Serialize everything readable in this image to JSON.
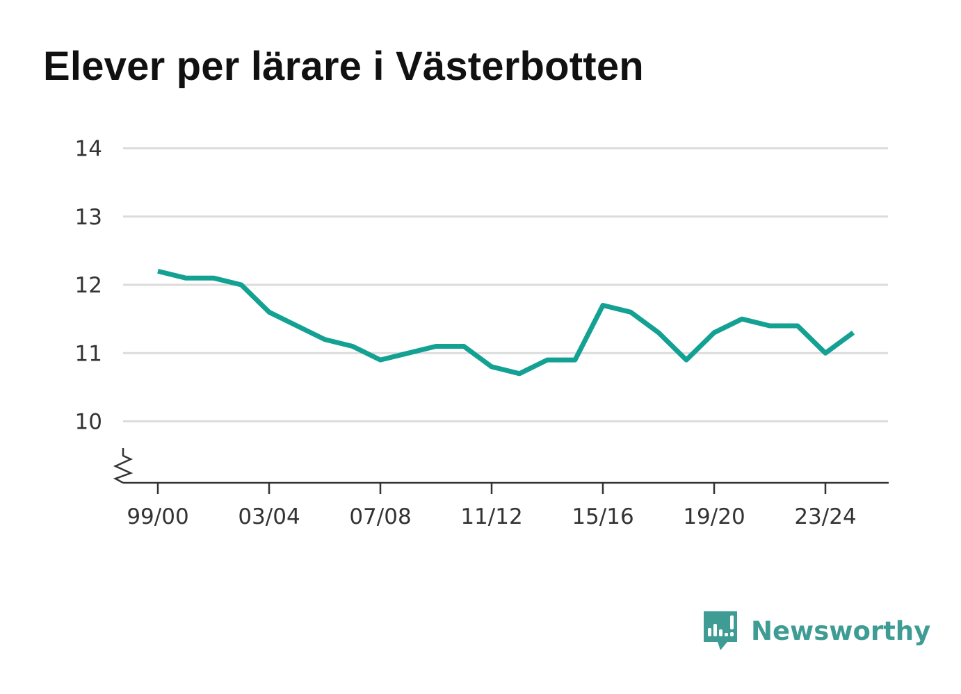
{
  "title": "Elever per lärare i Västerbotten",
  "brand": {
    "name": "Newsworthy",
    "icon": "newsworthy-logo-icon"
  },
  "colors": {
    "line": "#12a192",
    "grid": "#dcdcdc",
    "axis": "#333333",
    "brand": "#3f9c94"
  },
  "chart_data": {
    "type": "line",
    "title": "Elever per lärare i Västerbotten",
    "xlabel": "",
    "ylabel": "",
    "x": [
      "99/00",
      "00/01",
      "01/02",
      "02/03",
      "03/04",
      "04/05",
      "05/06",
      "06/07",
      "07/08",
      "08/09",
      "09/10",
      "10/11",
      "11/12",
      "12/13",
      "13/14",
      "14/15",
      "15/16",
      "16/17",
      "17/18",
      "18/19",
      "19/20",
      "20/21",
      "21/22",
      "22/23",
      "23/24",
      "24/25"
    ],
    "series": [
      {
        "values": [
          12.2,
          12.1,
          12.1,
          12.0,
          11.6,
          11.4,
          11.2,
          11.1,
          10.9,
          11.0,
          11.1,
          11.1,
          10.8,
          10.7,
          10.9,
          10.9,
          11.7,
          11.6,
          11.3,
          10.9,
          11.3,
          11.5,
          11.4,
          11.4,
          11.0,
          11.3
        ]
      }
    ],
    "ylim": [
      9.1,
      14
    ],
    "yticks": [
      10,
      11,
      12,
      13,
      14
    ],
    "ytick_labels": [
      "10",
      "11",
      "12",
      "13",
      "14"
    ],
    "xtick_labels": [
      "99/00",
      "03/04",
      "07/08",
      "11/12",
      "15/16",
      "19/20",
      "23/24"
    ],
    "axis_break": true,
    "grid": true,
    "legend": "none"
  }
}
